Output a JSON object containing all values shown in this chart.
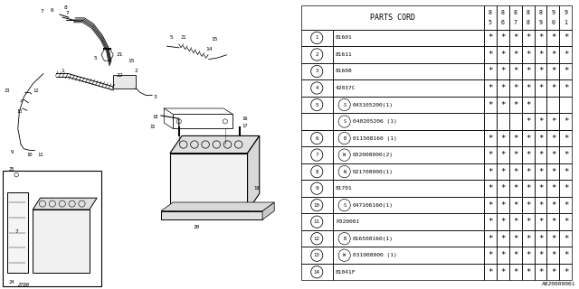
{
  "diagram_note": "A820000061",
  "table": {
    "header_col": "PARTS CORD",
    "year_cols": [
      "85",
      "86",
      "87",
      "88",
      "89",
      "90",
      "91"
    ],
    "rows": [
      {
        "num": "1",
        "prefix": "",
        "part": "81601",
        "stars": [
          1,
          1,
          1,
          1,
          1,
          1,
          1
        ]
      },
      {
        "num": "2",
        "prefix": "",
        "part": "81611",
        "stars": [
          1,
          1,
          1,
          1,
          1,
          1,
          1
        ]
      },
      {
        "num": "3",
        "prefix": "",
        "part": "81608",
        "stars": [
          1,
          1,
          1,
          1,
          1,
          1,
          1
        ]
      },
      {
        "num": "4",
        "prefix": "",
        "part": "42037C",
        "stars": [
          1,
          1,
          1,
          1,
          1,
          1,
          1
        ]
      },
      {
        "num": "5",
        "prefix": "S",
        "part": "043105200(1)",
        "stars": [
          1,
          1,
          1,
          1,
          0,
          0,
          0
        ],
        "row5a": true
      },
      {
        "num": "5",
        "prefix": "S",
        "part": "040205206 (1)",
        "stars": [
          0,
          0,
          0,
          1,
          1,
          1,
          1
        ],
        "row5b": true
      },
      {
        "num": "6",
        "prefix": "B",
        "part": "011508160 (1)",
        "stars": [
          1,
          1,
          1,
          1,
          1,
          1,
          1
        ]
      },
      {
        "num": "7",
        "prefix": "W",
        "part": "032008000(2)",
        "stars": [
          1,
          1,
          1,
          1,
          1,
          1,
          1
        ]
      },
      {
        "num": "8",
        "prefix": "N",
        "part": "021708000(1)",
        "stars": [
          1,
          1,
          1,
          1,
          1,
          1,
          1
        ]
      },
      {
        "num": "9",
        "prefix": "",
        "part": "81701",
        "stars": [
          1,
          1,
          1,
          1,
          1,
          1,
          1
        ]
      },
      {
        "num": "10",
        "prefix": "S",
        "part": "047106160(1)",
        "stars": [
          1,
          1,
          1,
          1,
          1,
          1,
          1
        ]
      },
      {
        "num": "11",
        "prefix": "",
        "part": "P320001",
        "stars": [
          1,
          1,
          1,
          1,
          1,
          1,
          1
        ]
      },
      {
        "num": "12",
        "prefix": "B",
        "part": "016508160(1)",
        "stars": [
          1,
          1,
          1,
          1,
          1,
          1,
          1
        ]
      },
      {
        "num": "13",
        "prefix": "W",
        "part": "031008000 (1)",
        "stars": [
          1,
          1,
          1,
          1,
          1,
          1,
          1
        ]
      },
      {
        "num": "14",
        "prefix": "",
        "part": "81041F",
        "stars": [
          1,
          1,
          1,
          1,
          1,
          1,
          1
        ]
      }
    ]
  },
  "bg_color": "#ffffff"
}
